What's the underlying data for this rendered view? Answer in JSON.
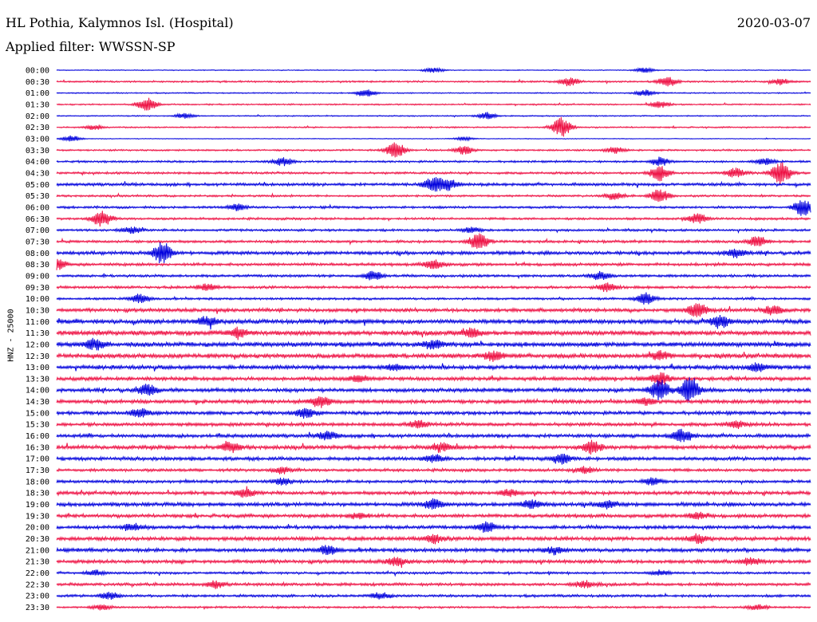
{
  "header": {
    "station": "HL Pothia, Kalymnos Isl. (Hospital)",
    "filter": "Applied filter: WWSSN-SP",
    "date": "2020-03-07"
  },
  "chart_data": {
    "type": "line",
    "title": "HL Pothia, Kalymnos Isl. (Hospital)",
    "subtitle": "Applied filter: WWSSN-SP",
    "ylabel": "HNZ - 25000",
    "categories": [
      "00:00",
      "00:30",
      "01:00",
      "01:30",
      "02:00",
      "02:30",
      "03:00",
      "03:30",
      "04:00",
      "04:30",
      "05:00",
      "05:30",
      "06:00",
      "06:30",
      "07:00",
      "07:30",
      "08:00",
      "08:30",
      "09:00",
      "09:30",
      "10:00",
      "10:30",
      "11:00",
      "11:30",
      "12:00",
      "12:30",
      "13:00",
      "13:30",
      "14:00",
      "14:30",
      "15:00",
      "15:30",
      "16:00",
      "16:30",
      "17:00",
      "17:30",
      "18:00",
      "18:30",
      "19:00",
      "19:30",
      "20:00",
      "20:30",
      "21:00",
      "21:30",
      "22:00",
      "22:30",
      "23:00",
      "23:30"
    ],
    "colors": [
      "#0000dd",
      "#ee1144"
    ],
    "noise_level": [
      0.6,
      1.2,
      0.8,
      1.0,
      0.8,
      1.0,
      0.5,
      1.2,
      1.4,
      1.6,
      2.0,
      1.4,
      1.6,
      1.6,
      1.6,
      1.8,
      2.4,
      2.0,
      1.8,
      1.8,
      1.6,
      2.4,
      3.0,
      3.2,
      3.2,
      3.0,
      2.8,
      2.6,
      2.6,
      2.6,
      2.4,
      2.4,
      2.4,
      2.6,
      2.4,
      2.0,
      2.0,
      2.4,
      2.6,
      2.4,
      2.4,
      2.6,
      2.6,
      2.4,
      1.6,
      2.0,
      1.8,
      1.4
    ],
    "events": [
      {
        "row": 0,
        "t": 0.5,
        "amp": 3
      },
      {
        "row": 0,
        "t": 0.78,
        "amp": 3
      },
      {
        "row": 1,
        "t": 0.68,
        "amp": 5
      },
      {
        "row": 1,
        "t": 0.81,
        "amp": 6
      },
      {
        "row": 1,
        "t": 0.96,
        "amp": 4
      },
      {
        "row": 2,
        "t": 0.41,
        "amp": 5
      },
      {
        "row": 2,
        "t": 0.78,
        "amp": 4
      },
      {
        "row": 3,
        "t": 0.12,
        "amp": 8
      },
      {
        "row": 3,
        "t": 0.8,
        "amp": 4
      },
      {
        "row": 4,
        "t": 0.17,
        "amp": 3
      },
      {
        "row": 4,
        "t": 0.57,
        "amp": 4
      },
      {
        "row": 5,
        "t": 0.67,
        "amp": 12
      },
      {
        "row": 5,
        "t": 0.05,
        "amp": 3
      },
      {
        "row": 6,
        "t": 0.02,
        "amp": 4
      },
      {
        "row": 6,
        "t": 0.54,
        "amp": 2
      },
      {
        "row": 7,
        "t": 0.45,
        "amp": 10
      },
      {
        "row": 7,
        "t": 0.54,
        "amp": 5
      },
      {
        "row": 7,
        "t": 0.74,
        "amp": 4
      },
      {
        "row": 8,
        "t": 0.3,
        "amp": 5
      },
      {
        "row": 8,
        "t": 0.8,
        "amp": 5
      },
      {
        "row": 8,
        "t": 0.94,
        "amp": 4
      },
      {
        "row": 9,
        "t": 0.8,
        "amp": 9
      },
      {
        "row": 9,
        "t": 0.96,
        "amp": 14
      },
      {
        "row": 9,
        "t": 0.9,
        "amp": 6
      },
      {
        "row": 10,
        "t": 0.5,
        "amp": 9
      },
      {
        "row": 10,
        "t": 0.52,
        "amp": 6
      },
      {
        "row": 11,
        "t": 0.8,
        "amp": 8
      },
      {
        "row": 11,
        "t": 0.74,
        "amp": 4
      },
      {
        "row": 12,
        "t": 0.99,
        "amp": 10
      },
      {
        "row": 12,
        "t": 0.24,
        "amp": 4
      },
      {
        "row": 13,
        "t": 0.06,
        "amp": 10
      },
      {
        "row": 13,
        "t": 0.85,
        "amp": 6
      },
      {
        "row": 14,
        "t": 0.1,
        "amp": 4
      },
      {
        "row": 14,
        "t": 0.55,
        "amp": 3
      },
      {
        "row": 15,
        "t": 0.56,
        "amp": 10
      },
      {
        "row": 15,
        "t": 0.93,
        "amp": 6
      },
      {
        "row": 16,
        "t": 0.14,
        "amp": 13
      },
      {
        "row": 16,
        "t": 0.9,
        "amp": 5
      },
      {
        "row": 17,
        "t": 0.0,
        "amp": 6
      },
      {
        "row": 17,
        "t": 0.5,
        "amp": 6
      },
      {
        "row": 18,
        "t": 0.42,
        "amp": 6
      },
      {
        "row": 18,
        "t": 0.72,
        "amp": 5
      },
      {
        "row": 19,
        "t": 0.73,
        "amp": 5
      },
      {
        "row": 19,
        "t": 0.2,
        "amp": 4
      },
      {
        "row": 20,
        "t": 0.11,
        "amp": 5
      },
      {
        "row": 20,
        "t": 0.78,
        "amp": 7
      },
      {
        "row": 21,
        "t": 0.85,
        "amp": 9
      },
      {
        "row": 21,
        "t": 0.95,
        "amp": 6
      },
      {
        "row": 22,
        "t": 0.88,
        "amp": 7
      },
      {
        "row": 22,
        "t": 0.2,
        "amp": 5
      },
      {
        "row": 23,
        "t": 0.55,
        "amp": 5
      },
      {
        "row": 23,
        "t": 0.24,
        "amp": 6
      },
      {
        "row": 24,
        "t": 0.05,
        "amp": 6
      },
      {
        "row": 24,
        "t": 0.5,
        "amp": 5
      },
      {
        "row": 25,
        "t": 0.58,
        "amp": 6
      },
      {
        "row": 25,
        "t": 0.8,
        "amp": 5
      },
      {
        "row": 26,
        "t": 0.93,
        "amp": 5
      },
      {
        "row": 26,
        "t": 0.45,
        "amp": 4
      },
      {
        "row": 27,
        "t": 0.8,
        "amp": 8
      },
      {
        "row": 27,
        "t": 0.4,
        "amp": 4
      },
      {
        "row": 28,
        "t": 0.8,
        "amp": 12
      },
      {
        "row": 28,
        "t": 0.84,
        "amp": 16
      },
      {
        "row": 28,
        "t": 0.12,
        "amp": 6
      },
      {
        "row": 29,
        "t": 0.35,
        "amp": 7
      },
      {
        "row": 29,
        "t": 0.78,
        "amp": 4
      },
      {
        "row": 30,
        "t": 0.11,
        "amp": 5
      },
      {
        "row": 30,
        "t": 0.33,
        "amp": 6
      },
      {
        "row": 31,
        "t": 0.48,
        "amp": 4
      },
      {
        "row": 31,
        "t": 0.9,
        "amp": 4
      },
      {
        "row": 32,
        "t": 0.83,
        "amp": 8
      },
      {
        "row": 32,
        "t": 0.36,
        "amp": 5
      },
      {
        "row": 33,
        "t": 0.71,
        "amp": 8
      },
      {
        "row": 33,
        "t": 0.23,
        "amp": 6
      },
      {
        "row": 33,
        "t": 0.51,
        "amp": 5
      },
      {
        "row": 34,
        "t": 0.67,
        "amp": 6
      },
      {
        "row": 34,
        "t": 0.5,
        "amp": 5
      },
      {
        "row": 35,
        "t": 0.3,
        "amp": 4
      },
      {
        "row": 35,
        "t": 0.7,
        "amp": 4
      },
      {
        "row": 36,
        "t": 0.3,
        "amp": 4
      },
      {
        "row": 36,
        "t": 0.79,
        "amp": 4
      },
      {
        "row": 37,
        "t": 0.25,
        "amp": 5
      },
      {
        "row": 37,
        "t": 0.6,
        "amp": 4
      },
      {
        "row": 38,
        "t": 0.5,
        "amp": 6
      },
      {
        "row": 38,
        "t": 0.63,
        "amp": 6
      },
      {
        "row": 38,
        "t": 0.73,
        "amp": 5
      },
      {
        "row": 39,
        "t": 0.4,
        "amp": 4
      },
      {
        "row": 39,
        "t": 0.85,
        "amp": 4
      },
      {
        "row": 40,
        "t": 0.57,
        "amp": 6
      },
      {
        "row": 40,
        "t": 0.1,
        "amp": 4
      },
      {
        "row": 41,
        "t": 0.5,
        "amp": 5
      },
      {
        "row": 41,
        "t": 0.85,
        "amp": 5
      },
      {
        "row": 42,
        "t": 0.36,
        "amp": 5
      },
      {
        "row": 42,
        "t": 0.66,
        "amp": 4
      },
      {
        "row": 43,
        "t": 0.45,
        "amp": 5
      },
      {
        "row": 43,
        "t": 0.92,
        "amp": 4
      },
      {
        "row": 44,
        "t": 0.05,
        "amp": 3
      },
      {
        "row": 44,
        "t": 0.8,
        "amp": 3
      },
      {
        "row": 45,
        "t": 0.21,
        "amp": 4
      },
      {
        "row": 45,
        "t": 0.7,
        "amp": 4
      },
      {
        "row": 46,
        "t": 0.43,
        "amp": 4
      },
      {
        "row": 46,
        "t": 0.07,
        "amp": 4
      },
      {
        "row": 47,
        "t": 0.06,
        "amp": 3
      },
      {
        "row": 47,
        "t": 0.93,
        "amp": 3
      }
    ]
  }
}
